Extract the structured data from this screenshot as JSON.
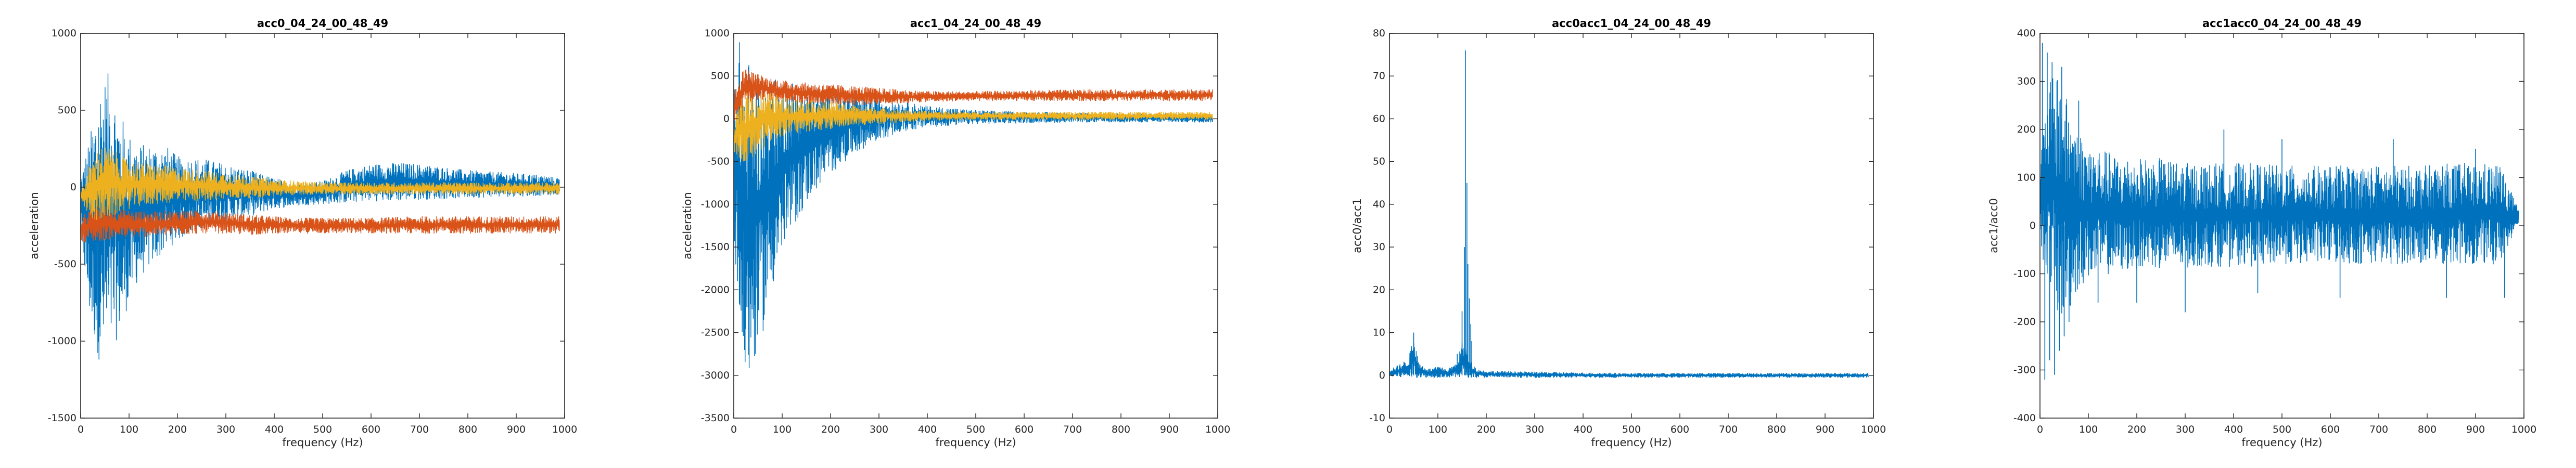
{
  "chart_data": [
    {
      "type": "line",
      "title": "acc0_04_24_00_48_49",
      "xlabel": "frequency (Hz)",
      "ylabel": "acceleration",
      "xlim": [
        0,
        1000
      ],
      "ylim": [
        -1500,
        1000
      ],
      "xticks": [
        "0",
        "100",
        "200",
        "300",
        "400",
        "500",
        "600",
        "700",
        "800",
        "900",
        "1000"
      ],
      "yticks": [
        "-1500",
        "-1000",
        "-500",
        "0",
        "500",
        "1000"
      ],
      "grid": false,
      "series": [
        {
          "color": "#0072BD",
          "kind": "band",
          "x": [
            0,
            20,
            40,
            60,
            80,
            100,
            120,
            150,
            180,
            200,
            250,
            300,
            350,
            400,
            450,
            500,
            550,
            600,
            650,
            700,
            750,
            800,
            850,
            900,
            950,
            990
          ],
          "upper": [
            100,
            350,
            700,
            750,
            500,
            350,
            280,
            280,
            260,
            200,
            190,
            150,
            110,
            60,
            20,
            40,
            110,
            150,
            160,
            150,
            130,
            110,
            100,
            90,
            80,
            60
          ],
          "lower": [
            -350,
            -900,
            -1150,
            -1100,
            -950,
            -750,
            -600,
            -500,
            -400,
            -350,
            -270,
            -220,
            -190,
            -140,
            -120,
            -110,
            -100,
            -90,
            -90,
            -80,
            -75,
            -70,
            -65,
            -60,
            -55,
            -50
          ]
        },
        {
          "color": "#D95319",
          "kind": "band",
          "x": [
            0,
            20,
            40,
            60,
            80,
            100,
            150,
            200,
            250,
            300,
            350,
            400,
            450,
            500,
            600,
            700,
            800,
            900,
            990
          ],
          "upper": [
            -200,
            -120,
            -120,
            -130,
            -140,
            -150,
            -160,
            -150,
            -150,
            -160,
            -180,
            -190,
            -200,
            -200,
            -200,
            -190,
            -190,
            -190,
            -190
          ],
          "lower": [
            -350,
            -360,
            -350,
            -340,
            -330,
            -330,
            -320,
            -310,
            -300,
            -300,
            -310,
            -300,
            -300,
            -300,
            -300,
            -300,
            -300,
            -300,
            -300
          ]
        },
        {
          "color": "#EDB120",
          "kind": "band",
          "x": [
            0,
            20,
            40,
            60,
            80,
            100,
            150,
            200,
            250,
            300,
            350,
            400,
            450,
            500,
            600,
            700,
            800,
            900,
            990
          ],
          "upper": [
            -30,
            150,
            270,
            260,
            210,
            170,
            150,
            130,
            110,
            90,
            70,
            50,
            40,
            30,
            30,
            30,
            30,
            30,
            30
          ],
          "lower": [
            -90,
            -200,
            -230,
            -210,
            -170,
            -140,
            -110,
            -100,
            -90,
            -80,
            -70,
            -60,
            -50,
            -45,
            -45,
            -45,
            -45,
            -45,
            -45
          ]
        }
      ]
    },
    {
      "type": "line",
      "title": "acc1_04_24_00_48_49",
      "xlabel": "frequency (Hz)",
      "ylabel": "acceleration",
      "xlim": [
        0,
        1000
      ],
      "ylim": [
        -3500,
        1000
      ],
      "xticks": [
        "0",
        "100",
        "200",
        "300",
        "400",
        "500",
        "600",
        "700",
        "800",
        "900",
        "1000"
      ],
      "yticks": [
        "-3500",
        "-3000",
        "-2500",
        "-2000",
        "-1500",
        "-1000",
        "-500",
        "0",
        "500",
        "1000"
      ],
      "grid": false,
      "series": [
        {
          "color": "#0072BD",
          "kind": "band",
          "x": [
            0,
            10,
            20,
            30,
            40,
            60,
            80,
            100,
            130,
            160,
            200,
            250,
            300,
            350,
            400,
            500,
            600,
            700,
            800,
            900,
            990
          ],
          "upper": [
            600,
            950,
            800,
            700,
            650,
            550,
            450,
            500,
            450,
            400,
            350,
            300,
            250,
            200,
            150,
            100,
            80,
            70,
            60,
            60,
            50
          ],
          "lower": [
            -1200,
            -2500,
            -3000,
            -3150,
            -2900,
            -2500,
            -2000,
            -1600,
            -1200,
            -900,
            -650,
            -400,
            -250,
            -150,
            -100,
            -60,
            -50,
            -40,
            -40,
            -40,
            -40
          ]
        },
        {
          "color": "#D95319",
          "kind": "band",
          "x": [
            0,
            20,
            40,
            60,
            100,
            150,
            200,
            250,
            300,
            350,
            400,
            500,
            600,
            700,
            800,
            900,
            990
          ],
          "upper": [
            300,
            600,
            550,
            500,
            450,
            420,
            400,
            380,
            360,
            340,
            320,
            320,
            330,
            340,
            340,
            340,
            340
          ],
          "lower": [
            -100,
            150,
            200,
            220,
            200,
            180,
            170,
            160,
            170,
            180,
            200,
            210,
            210,
            210,
            210,
            210,
            210
          ]
        },
        {
          "color": "#EDB120",
          "kind": "band",
          "x": [
            0,
            20,
            40,
            60,
            80,
            100,
            150,
            200,
            250,
            300,
            350,
            400,
            500,
            600,
            700,
            800,
            900,
            990
          ],
          "upper": [
            -50,
            300,
            300,
            320,
            300,
            250,
            220,
            200,
            160,
            130,
            100,
            90,
            80,
            80,
            80,
            80,
            80,
            80
          ],
          "lower": [
            -400,
            -500,
            -450,
            -350,
            -250,
            -200,
            -150,
            -120,
            -80,
            -60,
            -40,
            -20,
            -10,
            -10,
            -10,
            -10,
            -10,
            -10
          ]
        }
      ]
    },
    {
      "type": "line",
      "title": "acc0acc1_04_24_00_48_49",
      "xlabel": "frequency (Hz)",
      "ylabel": "acc0/acc1",
      "xlim": [
        0,
        1000
      ],
      "ylim": [
        -10,
        80
      ],
      "xticks": [
        "0",
        "100",
        "200",
        "300",
        "400",
        "500",
        "600",
        "700",
        "800",
        "900",
        "1000"
      ],
      "yticks": [
        "-10",
        "0",
        "10",
        "20",
        "30",
        "40",
        "50",
        "60",
        "70",
        "80"
      ],
      "grid": false,
      "series": [
        {
          "color": "#0072BD",
          "kind": "band",
          "x": [
            0,
            20,
            40,
            50,
            60,
            80,
            100,
            120,
            140,
            150,
            160,
            170,
            180,
            200,
            300,
            400,
            500,
            600,
            700,
            800,
            900,
            990
          ],
          "upper": [
            1.5,
            2.5,
            4,
            10,
            3,
            1.5,
            2,
            1.5,
            3,
            8,
            6,
            3,
            1.5,
            1,
            0.8,
            0.6,
            0.5,
            0.5,
            0.5,
            0.5,
            0.5,
            0.5
          ],
          "lower": [
            -0.5,
            -0.5,
            -0.5,
            -0.5,
            -0.5,
            -0.5,
            -0.5,
            -0.5,
            -0.5,
            -0.5,
            -0.5,
            -0.5,
            -0.5,
            -0.5,
            -0.5,
            -0.5,
            -0.5,
            -0.5,
            -0.5,
            -0.5,
            -0.5,
            -0.5
          ]
        },
        {
          "color": "#0072BD",
          "kind": "spikes",
          "x": [
            30,
            45,
            50,
            55,
            60,
            100,
            140,
            150,
            155,
            157,
            160,
            162,
            165,
            168,
            170
          ],
          "y": [
            3,
            6,
            10,
            4,
            3,
            2,
            5,
            15,
            30,
            76,
            45,
            26,
            18,
            12,
            8
          ]
        }
      ]
    },
    {
      "type": "line",
      "title": "acc1acc0_04_24_00_48_49",
      "xlabel": "frequency (Hz)",
      "ylabel": "acc1/acc0",
      "xlim": [
        0,
        1000
      ],
      "ylim": [
        -400,
        400
      ],
      "xticks": [
        "0",
        "100",
        "200",
        "300",
        "400",
        "500",
        "600",
        "700",
        "800",
        "900",
        "1000"
      ],
      "yticks": [
        "-400",
        "-300",
        "-200",
        "-100",
        "0",
        "100",
        "200",
        "300",
        "400"
      ],
      "grid": false,
      "series": [
        {
          "color": "#0072BD",
          "kind": "band",
          "x": [
            0,
            20,
            40,
            60,
            80,
            100,
            150,
            200,
            250,
            300,
            350,
            400,
            450,
            500,
            550,
            600,
            650,
            700,
            750,
            800,
            850,
            900,
            950,
            990
          ],
          "upper": [
            150,
            300,
            320,
            250,
            200,
            170,
            150,
            140,
            140,
            130,
            130,
            130,
            130,
            125,
            125,
            125,
            125,
            125,
            125,
            125,
            130,
            130,
            130,
            30
          ],
          "lower": [
            -50,
            -120,
            -200,
            -180,
            -130,
            -110,
            -100,
            -90,
            -90,
            -90,
            -85,
            -85,
            -85,
            -80,
            -80,
            -80,
            -80,
            -80,
            -80,
            -80,
            -80,
            -80,
            -80,
            10
          ]
        },
        {
          "color": "#0072BD",
          "kind": "spikes",
          "x": [
            5,
            10,
            15,
            20,
            25,
            30,
            35,
            40,
            45,
            50,
            60,
            80,
            120,
            200,
            300,
            380,
            450,
            500,
            620,
            730,
            840,
            900,
            960
          ],
          "y": [
            380,
            -320,
            360,
            -280,
            340,
            -310,
            300,
            -260,
            330,
            -230,
            -200,
            260,
            -160,
            -160,
            -180,
            200,
            -140,
            180,
            -150,
            180,
            -150,
            160,
            -150
          ]
        }
      ]
    }
  ]
}
